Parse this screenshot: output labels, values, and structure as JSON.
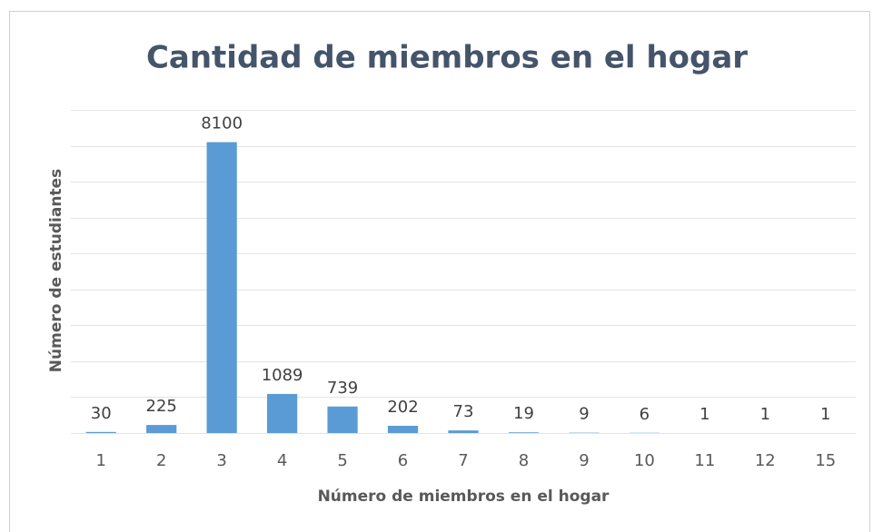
{
  "chart_data": {
    "type": "bar",
    "title": "Cantidad de miembros en el hogar",
    "x_label": "Número de miembros en el hogar",
    "y_label": "Número de estudiantes",
    "categories": [
      "1",
      "2",
      "3",
      "4",
      "5",
      "6",
      "7",
      "8",
      "9",
      "10",
      "11",
      "12",
      "15"
    ],
    "values": [
      30,
      225,
      8100,
      1089,
      739,
      202,
      73,
      19,
      9,
      6,
      1,
      1,
      1
    ],
    "color": "#5b9bd5",
    "ylim": [
      0,
      9000
    ],
    "yticks": [
      0,
      1000,
      2000,
      3000,
      4000,
      5000,
      6000,
      7000,
      8000,
      9000
    ],
    "grid": true
  }
}
